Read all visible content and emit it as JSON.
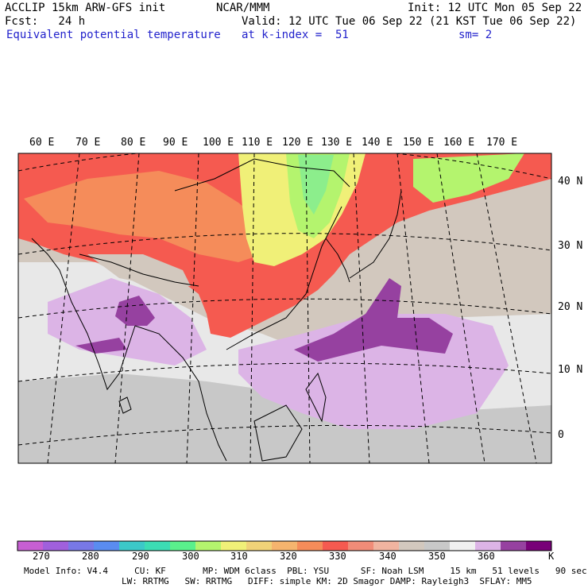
{
  "header": {
    "model": "ACCLIP 15km ARW-GFS init",
    "org": "NCAR/MMM",
    "init": "Init: 12 UTC Mon 05 Sep 22",
    "fcst": "Fcst:   24 h",
    "valid": "Valid: 12 UTC Tue 06 Sep 22 (21 KST Tue 06 Sep 22)",
    "field": "Equivalent potential temperature",
    "level": "at k-index =  51",
    "smooth": "sm= 2"
  },
  "map": {
    "lon_labels": [
      "60 E",
      "70 E",
      "80 E",
      "90 E",
      "100 E",
      "110 E",
      "120 E",
      "130 E",
      "140 E",
      "150 E",
      "160 E",
      "170 E"
    ],
    "lat_labels": [
      "40 N",
      "30 N",
      "20 N",
      "10 N",
      "0"
    ]
  },
  "colorbar": {
    "unit": "K",
    "labels": [
      "270",
      "280",
      "290",
      "300",
      "310",
      "320",
      "330",
      "340",
      "350",
      "360"
    ],
    "colors": [
      "#c65fd2",
      "#a060dc",
      "#7878e6",
      "#5a8cf0",
      "#3cc8c8",
      "#3cdcb4",
      "#5af08c",
      "#b4f46e",
      "#f0f078",
      "#f0d278",
      "#f5b46e",
      "#f58c5a",
      "#f55a50",
      "#f08c78",
      "#f0b4a0",
      "#d2c8be",
      "#c8c8c8",
      "#f0f0f0",
      "#dcb4e6",
      "#9641a0",
      "#780078"
    ]
  },
  "footer": {
    "line1": "Model Info: V4.4     CU: KF       MP: WDM 6class  PBL: YSU      SF: Noah LSM     15 km   51 levels   90 sec",
    "line2": "LW: RRTMG   SW: RRTMG   DIFF: simple KM: 2D Smagor DAMP: Rayleigh3  SFLAY: MM5"
  }
}
